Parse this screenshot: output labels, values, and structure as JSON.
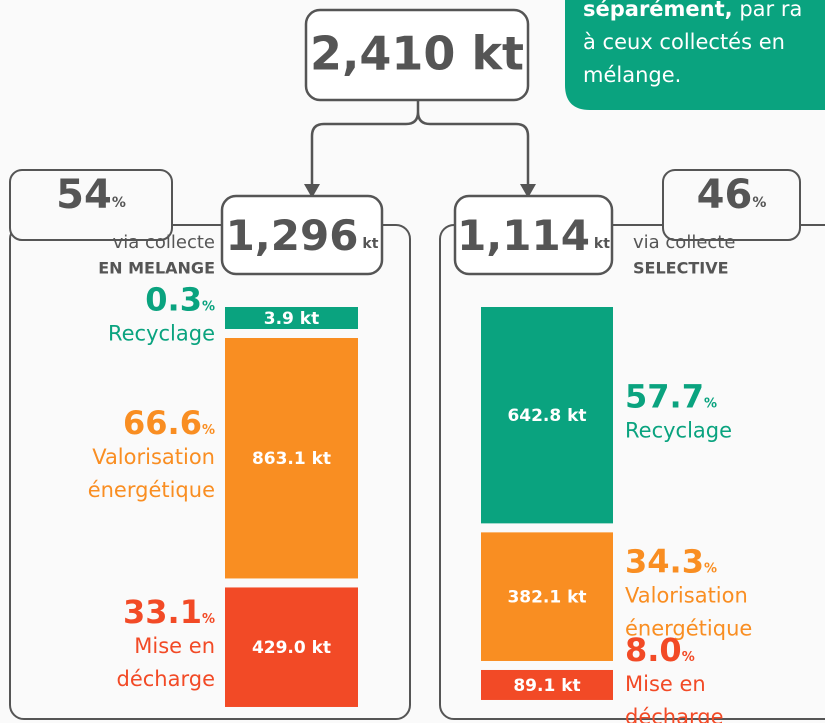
{
  "note": {
    "bold": "séparément,",
    "rest": " par ra",
    "lines": [
      "à ceux collectés en",
      "mélange."
    ]
  },
  "total": "2,410 kt",
  "panels": [
    {
      "share": "54",
      "share_unit": "%",
      "amount": "1,296",
      "amount_unit": "kt",
      "via": "via collecte",
      "mode": "EN MELANGE",
      "segments": [
        {
          "pct": "0.3",
          "pct_unit": "%",
          "label": [
            "Recyclage"
          ],
          "value": 3.9,
          "value_label": "3.9 kt",
          "color": "#0aa37f"
        },
        {
          "pct": "66.6",
          "pct_unit": "%",
          "label": [
            "Valorisation",
            "énergétique"
          ],
          "value": 863.1,
          "value_label": "863.1 kt",
          "color": "#f98e22"
        },
        {
          "pct": "33.1",
          "pct_unit": "%",
          "label": [
            "Mise en",
            "décharge"
          ],
          "value": 429.0,
          "value_label": "429.0 kt",
          "color": "#f24a26"
        }
      ]
    },
    {
      "share": "46",
      "share_unit": "%",
      "amount": "1,114",
      "amount_unit": "kt",
      "via": "via collecte",
      "mode": "SELECTIVE",
      "segments": [
        {
          "pct": "57.7",
          "pct_unit": "%",
          "label": [
            "Recyclage"
          ],
          "value": 642.8,
          "value_label": "642.8 kt",
          "color": "#0aa37f"
        },
        {
          "pct": "34.3",
          "pct_unit": "%",
          "label": [
            "Valorisation",
            "énergétique"
          ],
          "value": 382.1,
          "value_label": "382.1 kt",
          "color": "#f98e22"
        },
        {
          "pct": "8.0",
          "pct_unit": "%",
          "label": [
            "Mise en",
            "décharge"
          ],
          "value": 89.1,
          "value_label": "89.1 kt",
          "color": "#f24a26"
        }
      ]
    }
  ]
}
